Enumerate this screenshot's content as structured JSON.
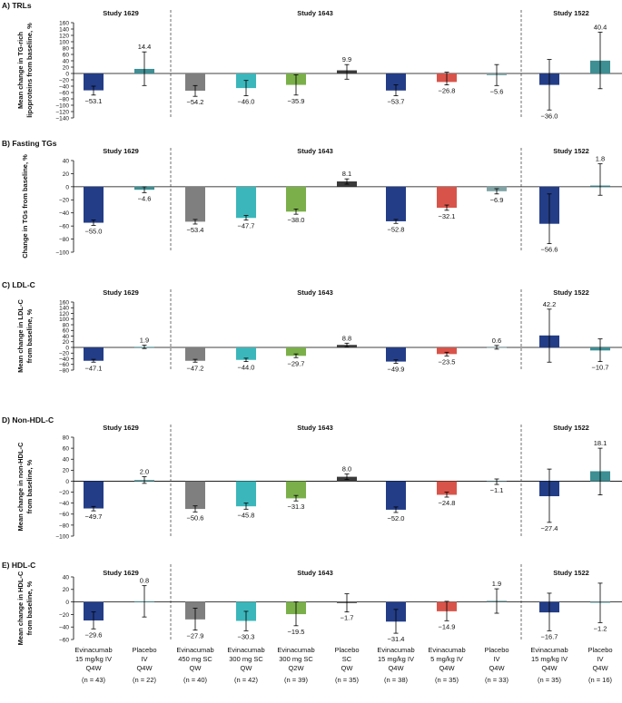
{
  "colors": {
    "evina15iv": "#233d87",
    "placebo_teal": "#3d8f93",
    "evina450sc": "#7f7f7f",
    "evina300qw": "#3bb7bb",
    "evina300q2w": "#7aaf4a",
    "placebo_dark": "#3a3a3a",
    "evina5iv": "#d8544a",
    "placebo_gray": "#7fa4a6"
  },
  "groups": [
    {
      "lines": [
        "Evinacumab",
        "15 mg/kg IV",
        "Q4W"
      ],
      "n": "(n = 43)",
      "color_key": "evina15iv"
    },
    {
      "lines": [
        "Placebo",
        "IV",
        "Q4W"
      ],
      "n": "(n = 22)",
      "color_key": "placebo_teal"
    },
    {
      "lines": [
        "Evinacumab",
        "450 mg SC",
        "QW"
      ],
      "n": "(n = 40)",
      "color_key": "evina450sc"
    },
    {
      "lines": [
        "Evinacumab",
        "300 mg SC",
        "QW"
      ],
      "n": "(n = 42)",
      "color_key": "evina300qw"
    },
    {
      "lines": [
        "Evinacumab",
        "300 mg SC",
        "Q2W"
      ],
      "n": "(n = 39)",
      "color_key": "evina300q2w"
    },
    {
      "lines": [
        "Placebo",
        "SC",
        "QW"
      ],
      "n": "(n = 35)",
      "color_key": "placebo_dark"
    },
    {
      "lines": [
        "Evinacumab",
        "15 mg/kg IV",
        "Q4W"
      ],
      "n": "(n = 38)",
      "color_key": "evina15iv"
    },
    {
      "lines": [
        "Evinacumab",
        "5 mg/kg IV",
        "Q4W"
      ],
      "n": "(n = 35)",
      "color_key": "evina5iv"
    },
    {
      "lines": [
        "Placebo",
        "IV",
        "Q4W"
      ],
      "n": "(n = 33)",
      "color_key": "placebo_gray"
    },
    {
      "lines": [
        "Evinacumab",
        "15 mg/kg IV",
        "Q4W"
      ],
      "n": "(n = 35)",
      "color_key": "evina15iv"
    },
    {
      "lines": [
        "Placebo",
        "IV",
        "Q4W"
      ],
      "n": "(n = 16)",
      "color_key": "placebo_teal"
    }
  ],
  "chart_data": [
    {
      "type": "bar",
      "panel_label": "A) TRLs",
      "ylabel": [
        "Mean change in TG-rich",
        "lipoproteins from baseline, %"
      ],
      "ylim": [
        -140,
        160
      ],
      "ticks": [
        -140,
        -120,
        -100,
        -80,
        -60,
        -40,
        -20,
        0,
        20,
        40,
        60,
        80,
        100,
        120,
        140,
        160
      ],
      "tick_labels": [
        "−140",
        "−120",
        "−100",
        "−80",
        "−60",
        "−40",
        "−20",
        "0",
        "20",
        "40",
        "60",
        "80",
        "100",
        "120",
        "140",
        "160"
      ],
      "studies": [
        "Study 1629",
        "Study 1643",
        "Study 1522"
      ],
      "values": [
        -53.1,
        14.4,
        -54.2,
        -46.0,
        -35.9,
        9.9,
        -53.7,
        -26.8,
        -5.6,
        -36.0,
        40.4
      ],
      "labels": [
        "−53.1",
        "14.4",
        "−54.2",
        "−46.0",
        "−35.9",
        "9.9",
        "−53.7",
        "−26.8",
        "−5.6",
        "−36.0",
        "40.4"
      ],
      "err_low": [
        -68,
        -38,
        -72,
        -70,
        -68,
        -18,
        -70,
        -36,
        -38,
        -115,
        -48
      ],
      "err_high": [
        -40,
        68,
        -38,
        -22,
        -4,
        28,
        -36,
        4,
        28,
        44,
        130
      ]
    },
    {
      "type": "bar",
      "panel_label": "B) Fasting TGs",
      "ylabel": [
        "Change in TGs from baseline, %"
      ],
      "ylim": [
        -100,
        40
      ],
      "ticks": [
        -100,
        -80,
        -60,
        -40,
        -20,
        0,
        20,
        40
      ],
      "tick_labels": [
        "−100",
        "−80",
        "−60",
        "−40",
        "−20",
        "0",
        "20",
        "40"
      ],
      "studies": [
        "Study 1629",
        "Study 1643",
        "Study 1522"
      ],
      "values": [
        -55.0,
        -4.6,
        -53.4,
        -47.7,
        -38.0,
        8.1,
        -52.8,
        -32.1,
        -6.9,
        -56.6,
        1.8
      ],
      "labels": [
        "−55.0",
        "−4.6",
        "−53.4",
        "−47.7",
        "−38.0",
        "8.1",
        "−52.8",
        "−32.1",
        "−6.9",
        "−56.6",
        "1.8"
      ],
      "err_low": [
        -59,
        -9,
        -57,
        -51,
        -42,
        4,
        -56,
        -36,
        -11,
        -87,
        -13
      ],
      "err_high": [
        -51,
        0,
        -50,
        -44,
        -34,
        12,
        -50,
        -28,
        -3,
        -11,
        35
      ]
    },
    {
      "type": "bar",
      "panel_label": "C) LDL-C",
      "ylabel": [
        "Mean change in LDL-C",
        "from baseline, %"
      ],
      "ylim": [
        -80,
        160
      ],
      "ticks": [
        -80,
        -60,
        -40,
        -20,
        0,
        20,
        40,
        60,
        80,
        100,
        120,
        140,
        160
      ],
      "tick_labels": [
        "−80",
        "−60",
        "−40",
        "−20",
        "0",
        "20",
        "40",
        "60",
        "80",
        "100",
        "120",
        "140",
        "160"
      ],
      "studies": [
        "Study 1629",
        "Study 1643",
        "Study 1522"
      ],
      "values": [
        -47.1,
        1.9,
        -47.2,
        -44.0,
        -29.7,
        8.8,
        -49.9,
        -23.5,
        0.6,
        42.2,
        -10.7
      ],
      "labels": [
        "−47.1",
        "1.9",
        "−47.2",
        "−44.0",
        "−29.7",
        "8.8",
        "−49.9",
        "−23.5",
        "0.6",
        "42.2",
        "−10.7"
      ],
      "err_low": [
        -52,
        -4,
        -52,
        -50,
        -36,
        2,
        -56,
        -30,
        -6,
        -52,
        -50
      ],
      "err_high": [
        -42,
        8,
        -42,
        -38,
        -23,
        15,
        -44,
        -17,
        7,
        135,
        30
      ]
    },
    {
      "type": "bar",
      "panel_label": "D) Non-HDL-C",
      "ylabel": [
        "Mean change in non-HDL-C",
        "from baseline, %"
      ],
      "ylim": [
        -100,
        80
      ],
      "ticks": [
        -100,
        -80,
        -60,
        -40,
        -20,
        0,
        20,
        40,
        60,
        80
      ],
      "tick_labels": [
        "−100",
        "−80",
        "−60",
        "−40",
        "−20",
        "0",
        "20",
        "40",
        "60",
        "80"
      ],
      "studies": [
        "Study 1629",
        "Study 1643",
        "Study 1522"
      ],
      "values": [
        -49.7,
        2.0,
        -50.6,
        -45.8,
        -31.3,
        8.0,
        -52.0,
        -24.8,
        -1.1,
        -27.4,
        18.1
      ],
      "labels": [
        "−49.7",
        "2.0",
        "−50.6",
        "−45.8",
        "−31.3",
        "8.0",
        "−52.0",
        "−24.8",
        "−1.1",
        "−27.4",
        "18.1"
      ],
      "err_low": [
        -54,
        -4,
        -56,
        -51,
        -36,
        3,
        -57,
        -29,
        -6,
        -75,
        -25
      ],
      "err_high": [
        -46,
        8,
        -45,
        -40,
        -26,
        13,
        -47,
        -20,
        4,
        22,
        60
      ]
    },
    {
      "type": "bar",
      "panel_label": "E) HDL-C",
      "ylabel": [
        "Mean change in HDL-C",
        "from baseline, %"
      ],
      "ylim": [
        -60,
        40
      ],
      "ticks": [
        -60,
        -40,
        -20,
        0,
        20,
        40
      ],
      "tick_labels": [
        "−60",
        "−40",
        "−20",
        "0",
        "20",
        "40"
      ],
      "studies": [
        "Study 1629",
        "Study 1643",
        "Study 1522"
      ],
      "values": [
        -29.6,
        0.8,
        -27.9,
        -30.3,
        -19.5,
        -1.7,
        -31.4,
        -14.9,
        1.9,
        -16.7,
        -1.2
      ],
      "labels": [
        "−29.6",
        "0.8",
        "−27.9",
        "−30.3",
        "−19.5",
        "−1.7",
        "−31.4",
        "−14.9",
        "1.9",
        "−16.7",
        "−1.2"
      ],
      "err_low": [
        -43,
        -24,
        -45,
        -46,
        -38,
        -16,
        -50,
        -30,
        -18,
        -46,
        -33
      ],
      "err_high": [
        -16,
        26,
        -10,
        -15,
        0,
        13,
        -12,
        1,
        21,
        14,
        30
      ]
    }
  ]
}
